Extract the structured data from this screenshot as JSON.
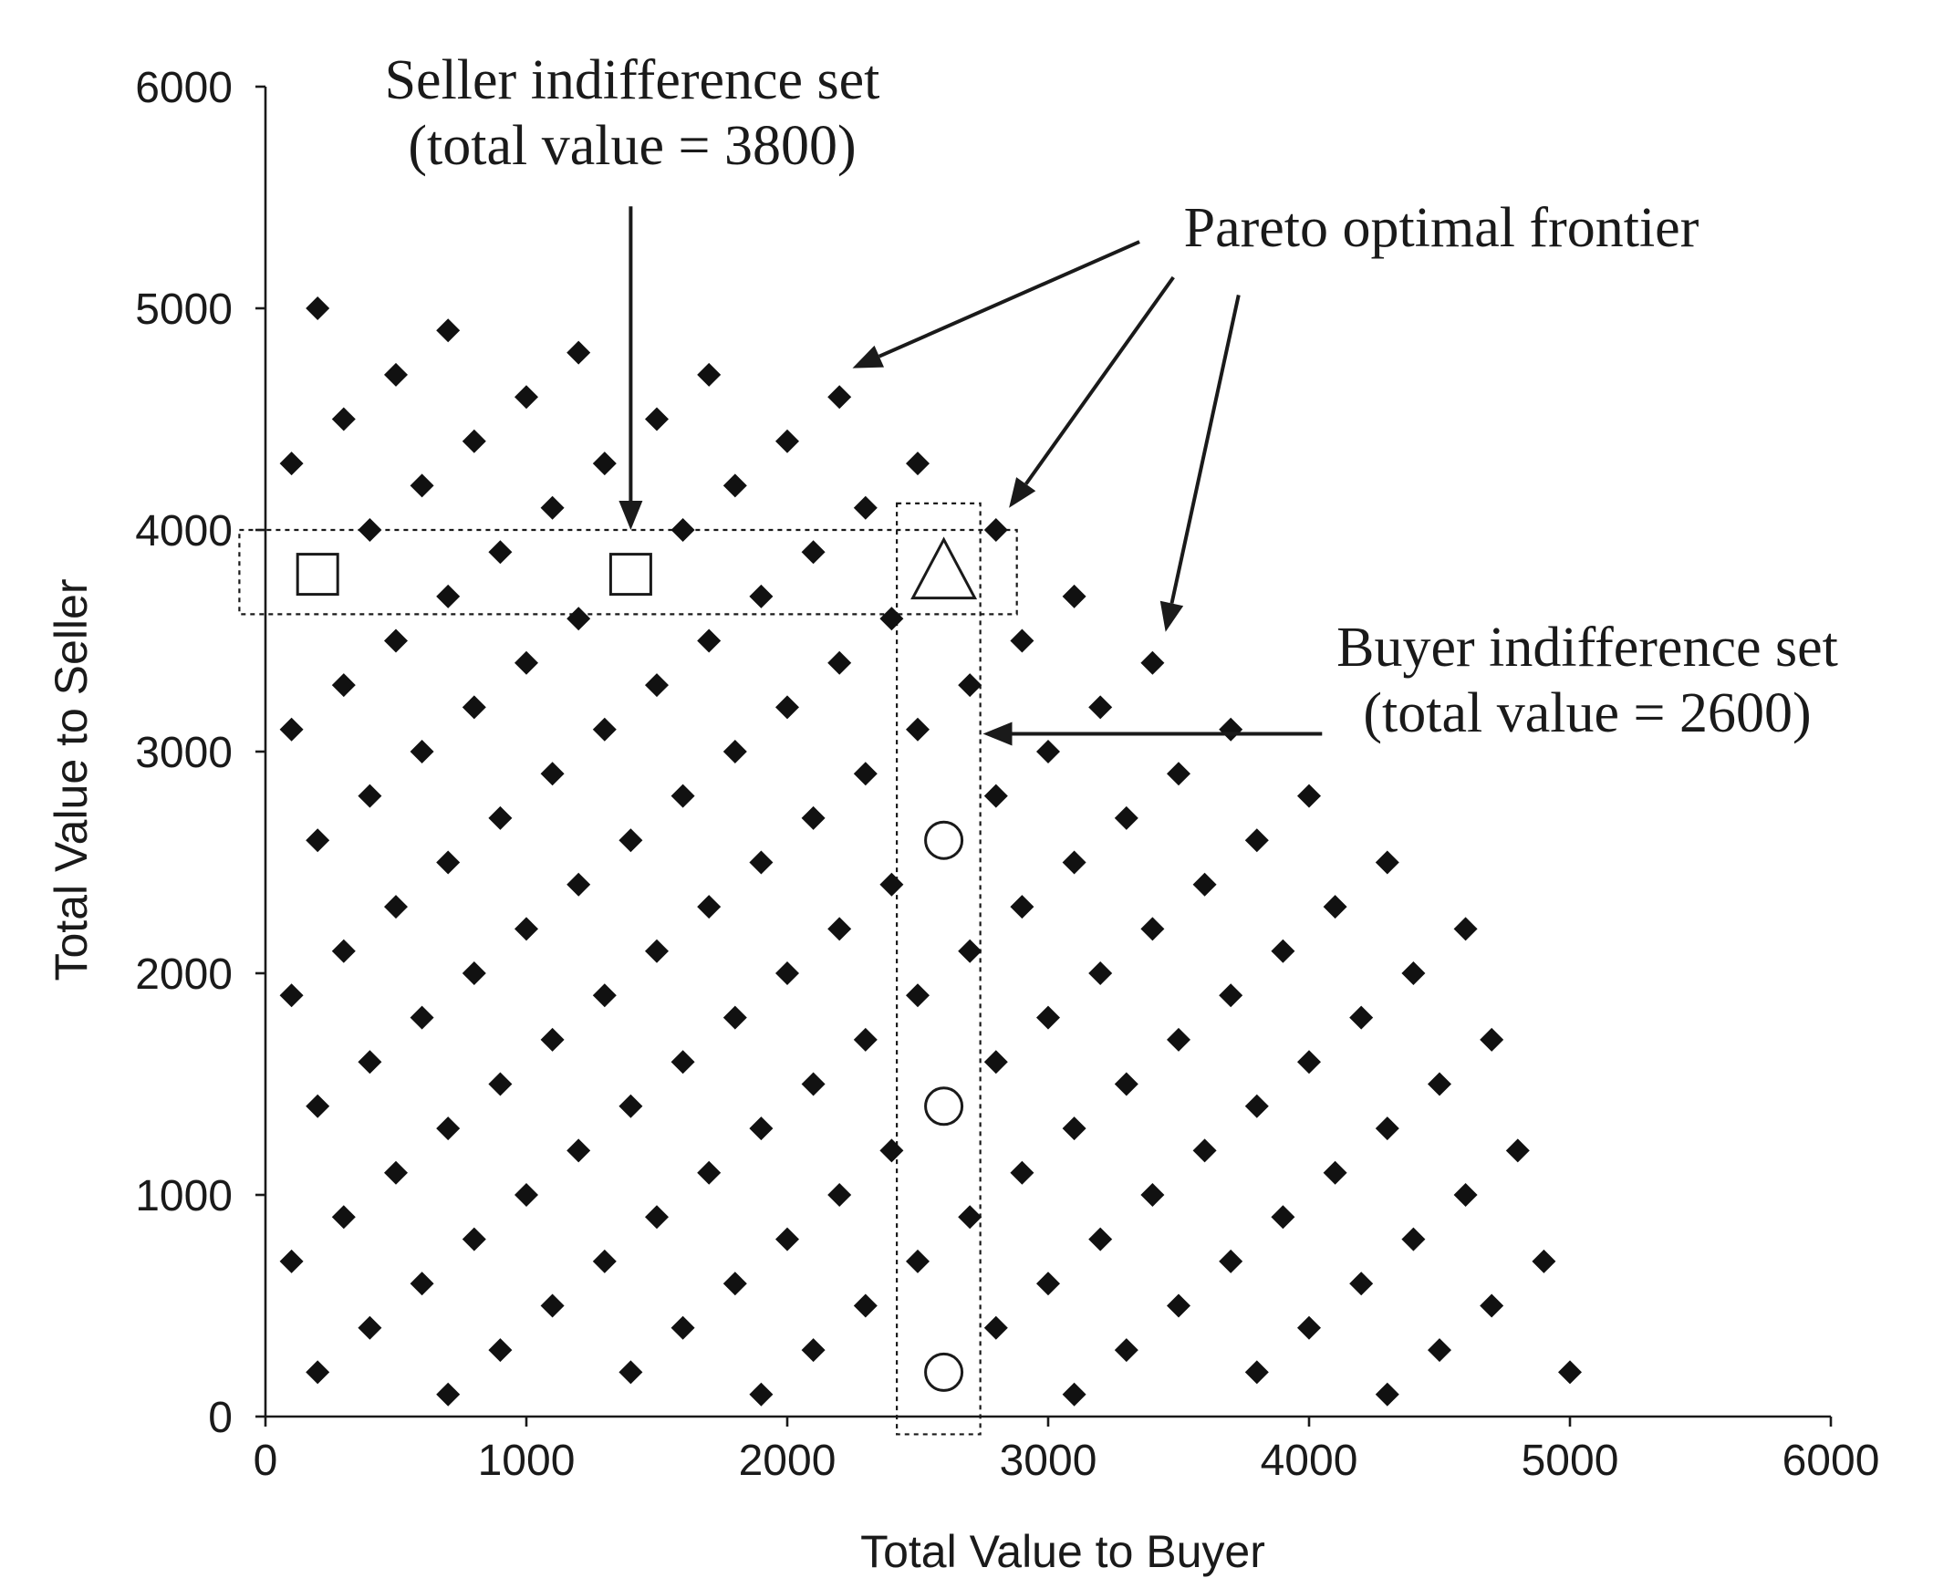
{
  "chart_data": {
    "type": "scatter",
    "title": "",
    "xlabel": "Total Value to Buyer",
    "ylabel": "Total Value to Seller",
    "xlim": [
      0,
      6000
    ],
    "ylim": [
      0,
      6000
    ],
    "xticks": [
      "0",
      "1000",
      "2000",
      "3000",
      "4000",
      "5000",
      "6000"
    ],
    "yticks": [
      "0",
      "1000",
      "2000",
      "3000",
      "4000",
      "5000",
      "6000"
    ],
    "grid": false,
    "legend": "none",
    "series": [
      {
        "marker": "diamond",
        "color": "#111111",
        "points": [
          [
            200,
            5000
          ],
          [
            700,
            4900
          ],
          [
            1200,
            4800
          ],
          [
            500,
            4700
          ],
          [
            1700,
            4700
          ],
          [
            2200,
            4600
          ],
          [
            1000,
            4600
          ],
          [
            300,
            4500
          ],
          [
            1500,
            4500
          ],
          [
            800,
            4400
          ],
          [
            2000,
            4400
          ],
          [
            100,
            4300
          ],
          [
            1300,
            4300
          ],
          [
            2500,
            4300
          ],
          [
            600,
            4200
          ],
          [
            1800,
            4200
          ],
          [
            1100,
            4100
          ],
          [
            2300,
            4100
          ],
          [
            400,
            4000
          ],
          [
            1600,
            4000
          ],
          [
            2800,
            4000
          ],
          [
            900,
            3900
          ],
          [
            2100,
            3900
          ],
          [
            700,
            3700
          ],
          [
            1900,
            3700
          ],
          [
            3100,
            3700
          ],
          [
            1200,
            3600
          ],
          [
            2400,
            3600
          ],
          [
            500,
            3500
          ],
          [
            1700,
            3500
          ],
          [
            2900,
            3500
          ],
          [
            3400,
            3400
          ],
          [
            1000,
            3400
          ],
          [
            2200,
            3400
          ],
          [
            300,
            3300
          ],
          [
            1500,
            3300
          ],
          [
            2700,
            3300
          ],
          [
            800,
            3200
          ],
          [
            2000,
            3200
          ],
          [
            3200,
            3200
          ],
          [
            100,
            3100
          ],
          [
            1300,
            3100
          ],
          [
            2500,
            3100
          ],
          [
            3700,
            3100
          ],
          [
            600,
            3000
          ],
          [
            1800,
            3000
          ],
          [
            3000,
            3000
          ],
          [
            3500,
            2900
          ],
          [
            1100,
            2900
          ],
          [
            2300,
            2900
          ],
          [
            400,
            2800
          ],
          [
            1600,
            2800
          ],
          [
            2800,
            2800
          ],
          [
            4000,
            2800
          ],
          [
            900,
            2700
          ],
          [
            2100,
            2700
          ],
          [
            3300,
            2700
          ],
          [
            200,
            2600
          ],
          [
            1400,
            2600
          ],
          [
            3800,
            2600
          ],
          [
            700,
            2500
          ],
          [
            1900,
            2500
          ],
          [
            3100,
            2500
          ],
          [
            4300,
            2500
          ],
          [
            1200,
            2400
          ],
          [
            2400,
            2400
          ],
          [
            3600,
            2400
          ],
          [
            500,
            2300
          ],
          [
            1700,
            2300
          ],
          [
            2900,
            2300
          ],
          [
            4100,
            2300
          ],
          [
            1000,
            2200
          ],
          [
            2200,
            2200
          ],
          [
            3400,
            2200
          ],
          [
            4600,
            2200
          ],
          [
            300,
            2100
          ],
          [
            1500,
            2100
          ],
          [
            2700,
            2100
          ],
          [
            3900,
            2100
          ],
          [
            800,
            2000
          ],
          [
            2000,
            2000
          ],
          [
            3200,
            2000
          ],
          [
            4400,
            2000
          ],
          [
            100,
            1900
          ],
          [
            1300,
            1900
          ],
          [
            2500,
            1900
          ],
          [
            3700,
            1900
          ],
          [
            600,
            1800
          ],
          [
            1800,
            1800
          ],
          [
            3000,
            1800
          ],
          [
            4200,
            1800
          ],
          [
            1100,
            1700
          ],
          [
            2300,
            1700
          ],
          [
            3500,
            1700
          ],
          [
            4700,
            1700
          ],
          [
            400,
            1600
          ],
          [
            1600,
            1600
          ],
          [
            2800,
            1600
          ],
          [
            4000,
            1600
          ],
          [
            900,
            1500
          ],
          [
            2100,
            1500
          ],
          [
            3300,
            1500
          ],
          [
            4500,
            1500
          ],
          [
            200,
            1400
          ],
          [
            1400,
            1400
          ],
          [
            3800,
            1400
          ],
          [
            700,
            1300
          ],
          [
            1900,
            1300
          ],
          [
            3100,
            1300
          ],
          [
            4300,
            1300
          ],
          [
            1200,
            1200
          ],
          [
            2400,
            1200
          ],
          [
            3600,
            1200
          ],
          [
            4800,
            1200
          ],
          [
            500,
            1100
          ],
          [
            1700,
            1100
          ],
          [
            2900,
            1100
          ],
          [
            4100,
            1100
          ],
          [
            1000,
            1000
          ],
          [
            2200,
            1000
          ],
          [
            3400,
            1000
          ],
          [
            4600,
            1000
          ],
          [
            300,
            900
          ],
          [
            1500,
            900
          ],
          [
            2700,
            900
          ],
          [
            3900,
            900
          ],
          [
            800,
            800
          ],
          [
            2000,
            800
          ],
          [
            3200,
            800
          ],
          [
            4400,
            800
          ],
          [
            100,
            700
          ],
          [
            1300,
            700
          ],
          [
            2500,
            700
          ],
          [
            3700,
            700
          ],
          [
            4900,
            700
          ],
          [
            600,
            600
          ],
          [
            1800,
            600
          ],
          [
            3000,
            600
          ],
          [
            4200,
            600
          ],
          [
            1100,
            500
          ],
          [
            2300,
            500
          ],
          [
            3500,
            500
          ],
          [
            4700,
            500
          ],
          [
            400,
            400
          ],
          [
            1600,
            400
          ],
          [
            2800,
            400
          ],
          [
            4000,
            400
          ],
          [
            900,
            300
          ],
          [
            2100,
            300
          ],
          [
            3300,
            300
          ],
          [
            4500,
            300
          ],
          [
            200,
            200
          ],
          [
            1400,
            200
          ],
          [
            3800,
            200
          ],
          [
            5000,
            200
          ],
          [
            700,
            100
          ],
          [
            1900,
            100
          ],
          [
            3100,
            100
          ],
          [
            4300,
            100
          ]
        ]
      },
      {
        "marker": "square",
        "points": [
          [
            200,
            3800
          ],
          [
            1400,
            3800
          ]
        ]
      },
      {
        "marker": "triangle",
        "points": [
          [
            2600,
            3800
          ]
        ]
      },
      {
        "marker": "circle",
        "points": [
          [
            2600,
            2600
          ],
          [
            2600,
            1400
          ],
          [
            2600,
            200
          ]
        ]
      }
    ],
    "regions": [
      {
        "name": "seller-indifference-set",
        "x": [
          -100,
          2880
        ],
        "y": [
          3620,
          4000
        ]
      },
      {
        "name": "buyer-indifference-set",
        "x": [
          2420,
          2740
        ],
        "y": [
          -80,
          4120
        ]
      }
    ],
    "annotations": [
      {
        "name": "seller",
        "lines": [
          "Seller indifference set",
          "(total value = 3800)"
        ],
        "arrows": [
          {
            "from": [
              1400,
              5460
            ],
            "to": [
              1400,
              4000
            ]
          }
        ]
      },
      {
        "name": "pareto",
        "lines": [
          "Pareto optimal frontier"
        ],
        "arrows": [
          {
            "from": [
              3350,
              5300
            ],
            "to": [
              2250,
              4730
            ]
          },
          {
            "from": [
              3480,
              5140
            ],
            "to": [
              2850,
              4100
            ]
          },
          {
            "from": [
              3730,
              5060
            ],
            "to": [
              3450,
              3540
            ]
          }
        ]
      },
      {
        "name": "buyer",
        "lines": [
          "Buyer indifference set",
          "(total value = 2600)"
        ],
        "arrows": [
          {
            "from": [
              4050,
              3080
            ],
            "to": [
              2750,
              3080
            ]
          }
        ]
      }
    ]
  }
}
